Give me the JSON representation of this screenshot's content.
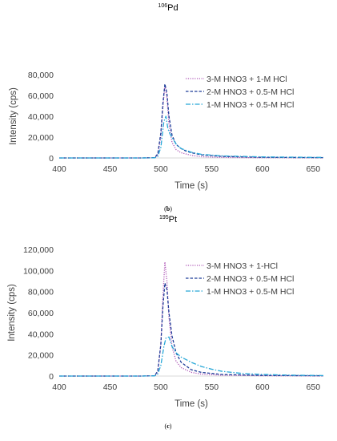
{
  "chart_data": [
    {
      "type": "line",
      "title_sup": "106",
      "title_main": "Pd",
      "xlabel": "Time (s)",
      "ylabel": "Intensity (cps)",
      "xlim": [
        400,
        660
      ],
      "ylim": [
        0,
        80000
      ],
      "x_ticks": [
        400,
        450,
        500,
        550,
        600,
        650
      ],
      "y_ticks": [
        0,
        20000,
        40000,
        60000,
        80000
      ],
      "y_tick_labels": [
        "0",
        "20,000",
        "40,000",
        "60,000",
        "80,000"
      ],
      "grid": false,
      "legend_position": "top-right",
      "panel_label": "b",
      "series": [
        {
          "name": "3-M HNO3 + 1-M HCl",
          "color": "#b05ab8",
          "style": "dotted",
          "points": [
            [
              400,
              0
            ],
            [
              480,
              0
            ],
            [
              494,
              200
            ],
            [
              497,
              3000
            ],
            [
              500,
              20000
            ],
            [
              502,
              48000
            ],
            [
              504,
              70000
            ],
            [
              506,
              58000
            ],
            [
              508,
              32000
            ],
            [
              511,
              15000
            ],
            [
              515,
              8000
            ],
            [
              520,
              5000
            ],
            [
              530,
              2500
            ],
            [
              540,
              1200
            ],
            [
              560,
              500
            ],
            [
              600,
              200
            ],
            [
              660,
              100
            ]
          ]
        },
        {
          "name": "2-M HNO3 + 0.5-M HCl",
          "color": "#1f3d99",
          "style": "dashed",
          "points": [
            [
              400,
              0
            ],
            [
              480,
              0
            ],
            [
              494,
              300
            ],
            [
              497,
              4000
            ],
            [
              500,
              24000
            ],
            [
              502,
              52000
            ],
            [
              504,
              71000
            ],
            [
              506,
              62000
            ],
            [
              508,
              40000
            ],
            [
              511,
              22000
            ],
            [
              515,
              13000
            ],
            [
              520,
              9000
            ],
            [
              525,
              6500
            ],
            [
              530,
              5000
            ],
            [
              540,
              3000
            ],
            [
              560,
              1500
            ],
            [
              600,
              600
            ],
            [
              660,
              300
            ]
          ]
        },
        {
          "name": "1-M HNO3 + 0.5-M HCl",
          "color": "#28a8d8",
          "style": "dashdot",
          "points": [
            [
              400,
              0
            ],
            [
              480,
              0
            ],
            [
              494,
              100
            ],
            [
              497,
              1500
            ],
            [
              500,
              10000
            ],
            [
              503,
              35000
            ],
            [
              505,
              40000
            ],
            [
              507,
              28000
            ],
            [
              509,
              23000
            ],
            [
              512,
              18000
            ],
            [
              516,
              12000
            ],
            [
              520,
              9000
            ],
            [
              530,
              5500
            ],
            [
              540,
              3500
            ],
            [
              560,
              2000
            ],
            [
              600,
              1000
            ],
            [
              660,
              500
            ]
          ]
        }
      ]
    },
    {
      "type": "line",
      "title_sup": "195",
      "title_main": "Pt",
      "xlabel": "Time (s)",
      "ylabel": "Intensity (cps)",
      "xlim": [
        400,
        660
      ],
      "ylim": [
        0,
        120000
      ],
      "x_ticks": [
        400,
        450,
        500,
        550,
        600,
        650
      ],
      "y_ticks": [
        0,
        20000,
        40000,
        60000,
        80000,
        100000,
        120000
      ],
      "y_tick_labels": [
        "0",
        "20,000",
        "40,000",
        "60,000",
        "80,000",
        "100,000",
        "120,000"
      ],
      "grid": false,
      "legend_position": "top-right",
      "panel_label": "c",
      "series": [
        {
          "name": "3-M HNO3 + 1-HCl",
          "color": "#b05ab8",
          "style": "dotted",
          "points": [
            [
              400,
              0
            ],
            [
              480,
              0
            ],
            [
              494,
              300
            ],
            [
              497,
              4000
            ],
            [
              500,
              30000
            ],
            [
              502,
              75000
            ],
            [
              504,
              108000
            ],
            [
              506,
              90000
            ],
            [
              508,
              55000
            ],
            [
              511,
              28000
            ],
            [
              515,
              14000
            ],
            [
              520,
              8000
            ],
            [
              530,
              3500
            ],
            [
              540,
              1800
            ],
            [
              560,
              800
            ],
            [
              600,
              300
            ],
            [
              660,
              100
            ]
          ]
        },
        {
          "name": "2-M HNO3 + 0.5-M HCl",
          "color": "#1f3d99",
          "style": "dashed",
          "points": [
            [
              400,
              0
            ],
            [
              480,
              0
            ],
            [
              494,
              300
            ],
            [
              497,
              5000
            ],
            [
              500,
              30000
            ],
            [
              502,
              65000
            ],
            [
              504,
              88000
            ],
            [
              506,
              82000
            ],
            [
              508,
              60000
            ],
            [
              511,
              38000
            ],
            [
              515,
              22000
            ],
            [
              520,
              13000
            ],
            [
              530,
              6000
            ],
            [
              540,
              3500
            ],
            [
              560,
              1500
            ],
            [
              600,
              600
            ],
            [
              660,
              300
            ]
          ]
        },
        {
          "name": "1-M HNO3 + 0.5-M HCl",
          "color": "#28a8d8",
          "style": "dashdot",
          "points": [
            [
              400,
              0
            ],
            [
              480,
              0
            ],
            [
              494,
              200
            ],
            [
              497,
              2000
            ],
            [
              500,
              10000
            ],
            [
              503,
              28000
            ],
            [
              505,
              36000
            ],
            [
              508,
              37000
            ],
            [
              511,
              28000
            ],
            [
              515,
              22000
            ],
            [
              520,
              18000
            ],
            [
              530,
              13000
            ],
            [
              540,
              9000
            ],
            [
              550,
              6500
            ],
            [
              560,
              4500
            ],
            [
              580,
              2500
            ],
            [
              600,
              1500
            ],
            [
              630,
              800
            ],
            [
              660,
              500
            ]
          ]
        }
      ]
    }
  ]
}
